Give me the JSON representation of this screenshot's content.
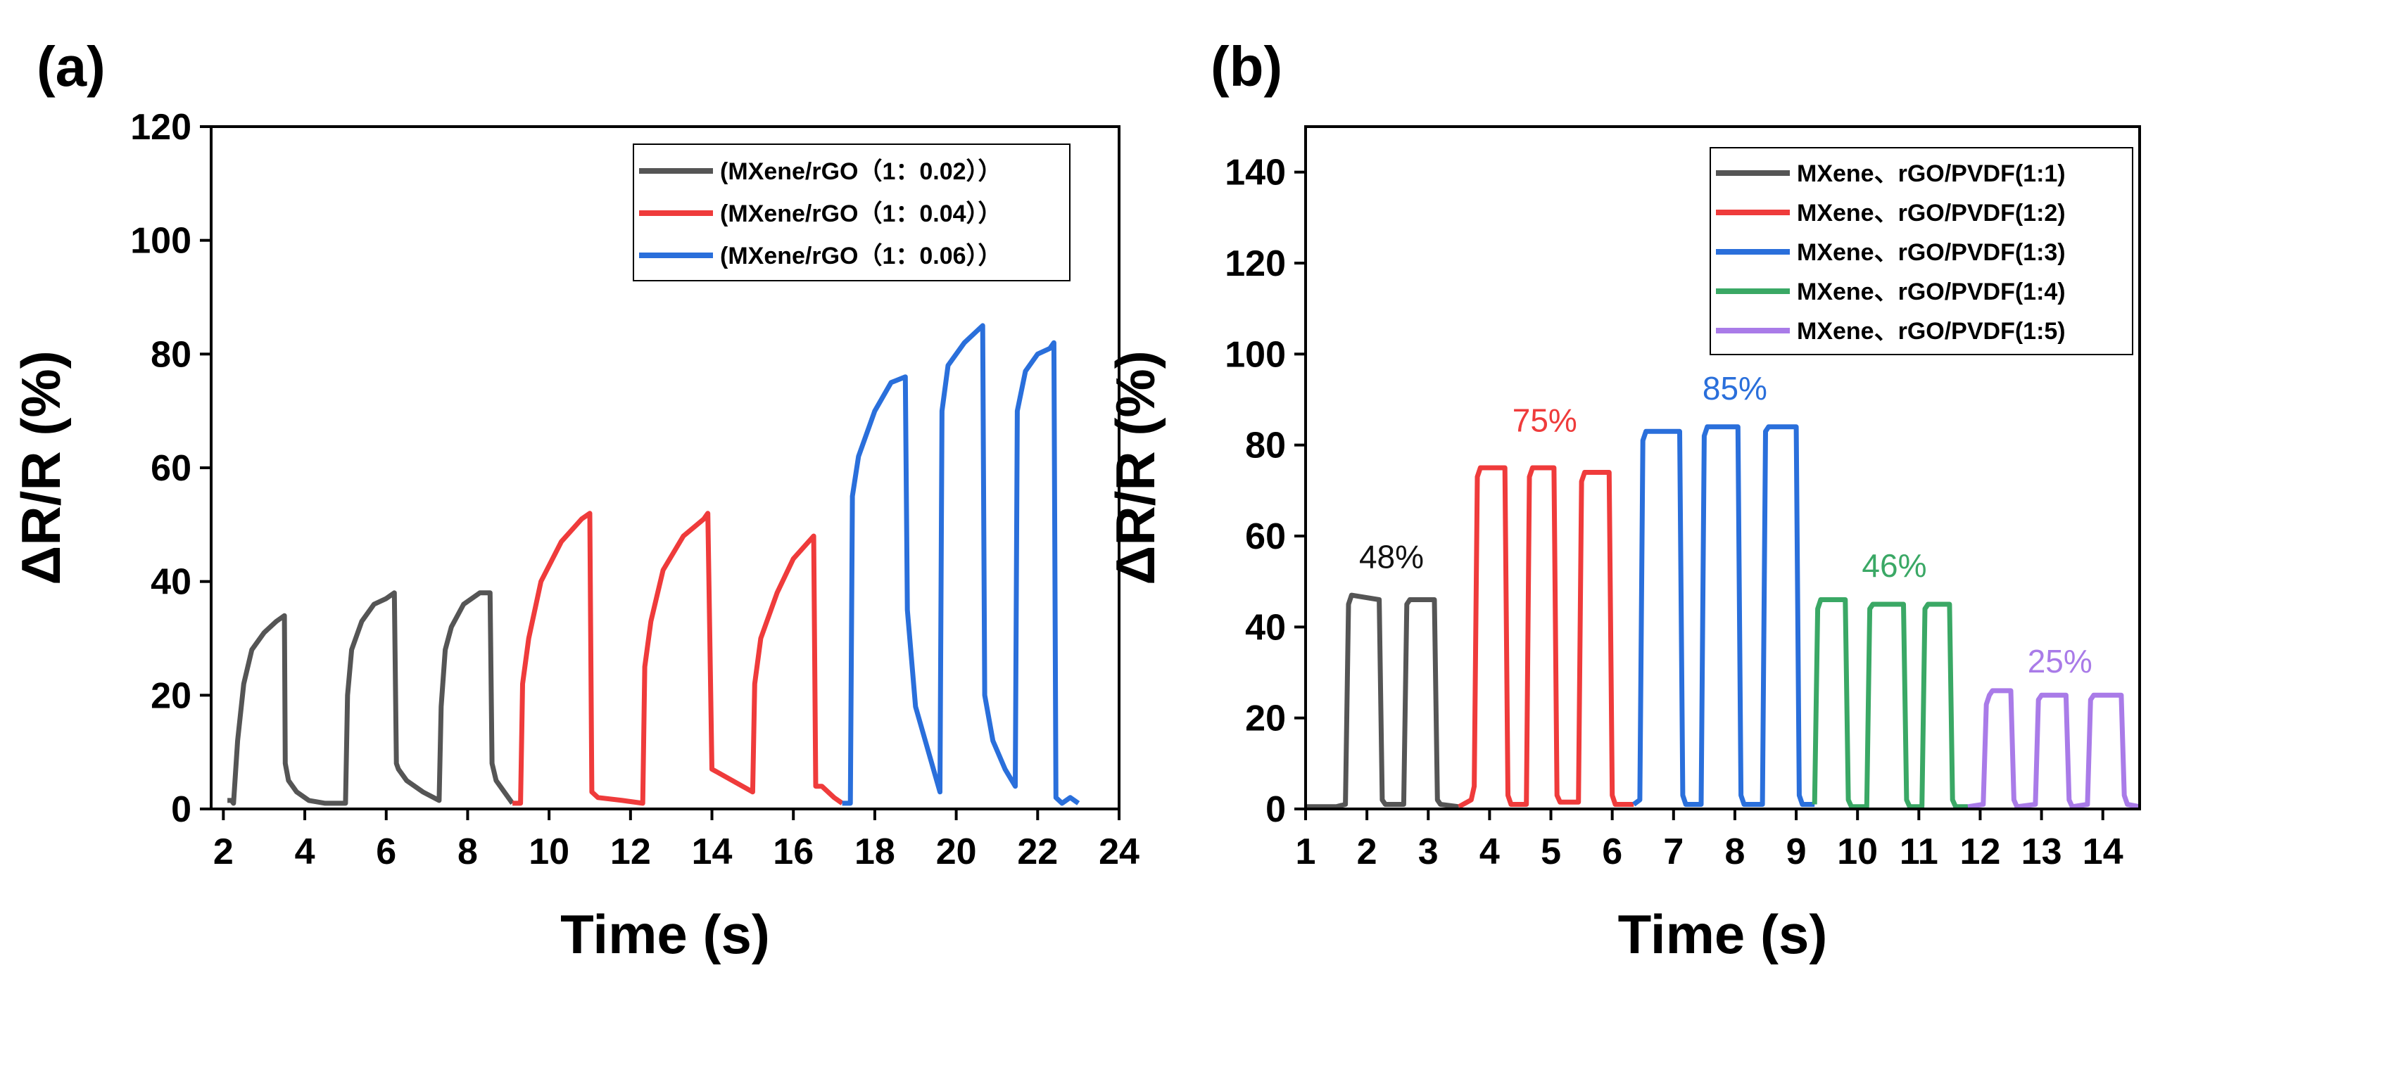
{
  "chart_data": [
    {
      "panel": "(a)",
      "type": "line",
      "xlabel": "Time (s)",
      "ylabel": "ΔR/R (%)",
      "xlim": [
        1.7,
        24
      ],
      "ylim": [
        0,
        120
      ],
      "xticks": [
        2,
        4,
        6,
        8,
        10,
        12,
        14,
        16,
        18,
        20,
        22,
        24
      ],
      "yticks": [
        0,
        20,
        40,
        60,
        80,
        100,
        120
      ],
      "legend_position": "top-right",
      "series": [
        {
          "name": "(MXene/rGO（1：0.02））",
          "color": "#555555",
          "x": [
            2.1,
            2.2,
            2.25,
            2.35,
            2.5,
            2.7,
            3.0,
            3.3,
            3.5,
            3.52,
            3.6,
            3.8,
            4.1,
            4.5,
            4.9,
            5.0,
            5.05,
            5.15,
            5.4,
            5.7,
            6.0,
            6.2,
            6.25,
            6.3,
            6.5,
            6.9,
            7.3,
            7.35,
            7.45,
            7.6,
            7.9,
            8.3,
            8.55,
            8.6,
            8.7,
            8.9,
            9.1
          ],
          "y": [
            1.5,
            1.5,
            1,
            12,
            22,
            28,
            31,
            33,
            34,
            8,
            5,
            3,
            1.5,
            1,
            1,
            1,
            20,
            28,
            33,
            36,
            37,
            38,
            8,
            7,
            5,
            3,
            1.5,
            18,
            28,
            32,
            36,
            38,
            38,
            8,
            5,
            3,
            1
          ]
        },
        {
          "name": "(MXene/rGO（1：0.04））",
          "color": "#ef3b3b",
          "x": [
            9.1,
            9.3,
            9.35,
            9.5,
            9.8,
            10.3,
            10.8,
            11.0,
            11.05,
            11.2,
            11.8,
            12.3,
            12.35,
            12.5,
            12.8,
            13.3,
            13.8,
            13.9,
            14.0,
            14.5,
            15.0,
            15.05,
            15.2,
            15.6,
            16.0,
            16.5,
            16.55,
            16.7,
            17.0,
            17.2
          ],
          "y": [
            1,
            1,
            22,
            30,
            40,
            47,
            51,
            52,
            3,
            2,
            1.5,
            1,
            25,
            33,
            42,
            48,
            51,
            52,
            7,
            5,
            3,
            22,
            30,
            38,
            44,
            48,
            4,
            4,
            2,
            1
          ]
        },
        {
          "name": "(MXene/rGO（1：0.06））",
          "color": "#2a6fdb",
          "x": [
            17.2,
            17.4,
            17.45,
            17.6,
            18.0,
            18.4,
            18.75,
            18.8,
            19.0,
            19.4,
            19.6,
            19.65,
            19.8,
            20.2,
            20.5,
            20.65,
            20.7,
            20.9,
            21.2,
            21.45,
            21.5,
            21.7,
            22.0,
            22.3,
            22.4,
            22.45,
            22.6,
            22.8,
            23.0
          ],
          "y": [
            1,
            1,
            55,
            62,
            70,
            75,
            76,
            35,
            18,
            8,
            3,
            70,
            78,
            82,
            84,
            85,
            20,
            12,
            7,
            4,
            70,
            77,
            80,
            81,
            82,
            2,
            1,
            2,
            1
          ]
        }
      ]
    },
    {
      "panel": "(b)",
      "type": "line",
      "xlabel": "Time (s)",
      "ylabel": "ΔR/R (%)",
      "xlim": [
        1,
        14.6
      ],
      "ylim": [
        0,
        150
      ],
      "xticks": [
        1,
        2,
        3,
        4,
        5,
        6,
        7,
        8,
        9,
        10,
        11,
        12,
        13,
        14
      ],
      "yticks": [
        0,
        20,
        40,
        60,
        80,
        100,
        120,
        140
      ],
      "legend_position": "top-right",
      "series": [
        {
          "name": "MXene、rGO/PVDF(1:1)",
          "color": "#555555",
          "x": [
            1.0,
            1.5,
            1.65,
            1.7,
            1.75,
            2.2,
            2.25,
            2.3,
            2.6,
            2.65,
            2.7,
            3.1,
            3.15,
            3.2,
            3.5
          ],
          "y": [
            0.5,
            0.5,
            1,
            45,
            47,
            46,
            2,
            1,
            1,
            45,
            46,
            46,
            2,
            1,
            0.5
          ]
        },
        {
          "name": "MXene、rGO/PVDF(1:2)",
          "color": "#ef3b3b",
          "x": [
            3.5,
            3.7,
            3.75,
            3.8,
            3.85,
            4.25,
            4.3,
            4.35,
            4.6,
            4.65,
            4.7,
            5.05,
            5.1,
            5.15,
            5.45,
            5.5,
            5.55,
            5.95,
            6.0,
            6.05,
            6.35
          ],
          "y": [
            0.5,
            2,
            5,
            73,
            75,
            75,
            3,
            1,
            1,
            73,
            75,
            75,
            3,
            1.5,
            1.5,
            72,
            74,
            74,
            3,
            1,
            1
          ]
        },
        {
          "name": "MXene、rGO/PVDF(1:3)",
          "color": "#2a6fdb",
          "x": [
            6.35,
            6.45,
            6.5,
            6.55,
            7.1,
            7.15,
            7.2,
            7.45,
            7.5,
            7.55,
            8.05,
            8.1,
            8.15,
            8.45,
            8.5,
            8.55,
            9.0,
            9.05,
            9.1,
            9.3
          ],
          "y": [
            1,
            2,
            81,
            83,
            83,
            3,
            1,
            1,
            82,
            84,
            84,
            3,
            1,
            1,
            83,
            84,
            84,
            3,
            1,
            1
          ]
        },
        {
          "name": "MXene、rGO/PVDF(1:4)",
          "color": "#3aa865",
          "x": [
            9.3,
            9.35,
            9.4,
            9.8,
            9.85,
            9.9,
            10.15,
            10.2,
            10.25,
            10.75,
            10.8,
            10.85,
            11.05,
            11.1,
            11.15,
            11.5,
            11.55,
            11.6,
            11.8
          ],
          "y": [
            1,
            44,
            46,
            46,
            2,
            0.5,
            0.5,
            44,
            45,
            45,
            2,
            0.5,
            0.5,
            44,
            45,
            45,
            2,
            0.5,
            0.5
          ]
        },
        {
          "name": "MXene、rGO/PVDF(1:5)",
          "color": "#a97be8",
          "x": [
            11.8,
            12.05,
            12.1,
            12.15,
            12.2,
            12.5,
            12.55,
            12.6,
            12.9,
            12.95,
            13.0,
            13.4,
            13.45,
            13.5,
            13.75,
            13.8,
            13.85,
            14.3,
            14.35,
            14.4,
            14.6
          ],
          "y": [
            0.5,
            1,
            23,
            25,
            26,
            26,
            2,
            0.5,
            1,
            24,
            25,
            25,
            2,
            0.5,
            1,
            24,
            25,
            25,
            3,
            1,
            0.5
          ]
        }
      ],
      "annotations": [
        {
          "text": "48%",
          "x": 2.4,
          "y": 53,
          "color": "#111111"
        },
        {
          "text": "75%",
          "x": 4.9,
          "y": 83,
          "color": "#ef3b3b"
        },
        {
          "text": "85%",
          "x": 8.0,
          "y": 90,
          "color": "#2a6fdb"
        },
        {
          "text": "46%",
          "x": 10.6,
          "y": 51,
          "color": "#3aa865"
        },
        {
          "text": "25%",
          "x": 13.3,
          "y": 30,
          "color": "#a97be8"
        }
      ]
    }
  ]
}
